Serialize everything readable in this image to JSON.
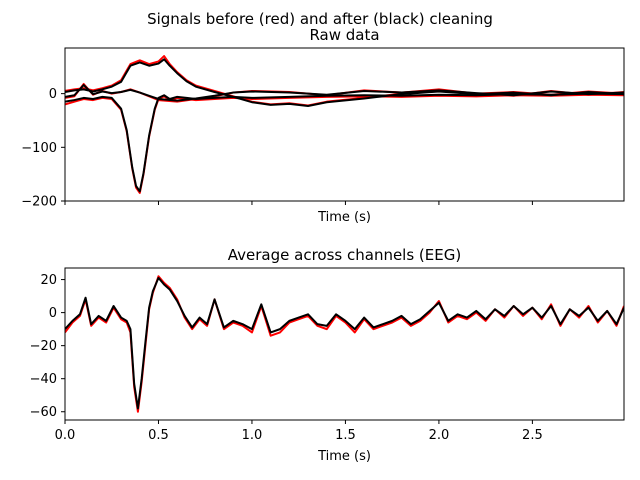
{
  "figure": {
    "suptitle": "Signals before (red) and after (black) cleaning",
    "colors": {
      "before": "#ff0000",
      "after": "#000000"
    }
  },
  "chart_data": [
    {
      "type": "line",
      "title": "Raw data",
      "xlabel": "Time (s)",
      "ylabel": "",
      "xlim": [
        0,
        2.99
      ],
      "ylim": [
        -200,
        85
      ],
      "xticks": [
        0.0,
        0.5,
        1.0,
        1.5,
        2.0,
        2.5
      ],
      "xtick_labels": [
        "",
        "",
        "",
        "",
        "",
        ""
      ],
      "yticks": [
        -200,
        -100,
        0
      ],
      "ytick_labels": [
        "−200",
        "−100",
        "0"
      ],
      "grid": false,
      "legend": "none",
      "series_groups": [
        {
          "channel": 1,
          "before": {
            "x": [
              0.0,
              0.05,
              0.1,
              0.15,
              0.2,
              0.25,
              0.3,
              0.33,
              0.36,
              0.38,
              0.4,
              0.42,
              0.45,
              0.48,
              0.5,
              0.53,
              0.56,
              0.6,
              0.65,
              0.7,
              0.8,
              0.9,
              1.0,
              1.2,
              1.4,
              1.6,
              1.8,
              2.0,
              2.2,
              2.4,
              2.6,
              2.8,
              2.99
            ],
            "y": [
              -20,
              -15,
              -10,
              -12,
              -8,
              -10,
              -30,
              -70,
              -140,
              -175,
              -185,
              -150,
              -80,
              -30,
              -10,
              -5,
              -12,
              -8,
              -10,
              -12,
              -10,
              -8,
              -10,
              -8,
              -6,
              -5,
              -6,
              -4,
              -5,
              -3,
              -4,
              -2,
              -3
            ]
          },
          "after": {
            "x": [
              0.0,
              0.05,
              0.1,
              0.15,
              0.2,
              0.25,
              0.3,
              0.33,
              0.36,
              0.38,
              0.4,
              0.42,
              0.45,
              0.48,
              0.5,
              0.53,
              0.56,
              0.6,
              0.65,
              0.7,
              0.8,
              0.9,
              1.0,
              1.2,
              1.4,
              1.6,
              1.8,
              2.0,
              2.2,
              2.4,
              2.6,
              2.8,
              2.99
            ],
            "y": [
              -15,
              -12,
              -8,
              -10,
              -6,
              -8,
              -28,
              -68,
              -138,
              -172,
              -182,
              -148,
              -78,
              -28,
              -8,
              -3,
              -10,
              -6,
              -8,
              -10,
              -8,
              -6,
              -8,
              -6,
              -4,
              -3,
              -4,
              -2,
              -3,
              -1,
              -2,
              0,
              -1
            ]
          }
        },
        {
          "channel": 2,
          "before": {
            "x": [
              0.0,
              0.05,
              0.1,
              0.15,
              0.2,
              0.25,
              0.3,
              0.35,
              0.4,
              0.45,
              0.5,
              0.53,
              0.56,
              0.6,
              0.65,
              0.7,
              0.8,
              0.9,
              1.0,
              1.1,
              1.2,
              1.3,
              1.4,
              1.6,
              1.8,
              2.0,
              2.2,
              2.4,
              2.6,
              2.8,
              2.99
            ],
            "y": [
              5,
              8,
              10,
              6,
              10,
              15,
              25,
              55,
              62,
              55,
              60,
              70,
              55,
              40,
              25,
              15,
              5,
              -5,
              -15,
              -20,
              -18,
              -22,
              -15,
              -8,
              0,
              5,
              0,
              3,
              -2,
              4,
              0
            ]
          },
          "after": {
            "x": [
              0.0,
              0.05,
              0.1,
              0.15,
              0.2,
              0.25,
              0.3,
              0.35,
              0.4,
              0.45,
              0.5,
              0.53,
              0.56,
              0.6,
              0.65,
              0.7,
              0.8,
              0.9,
              1.0,
              1.1,
              1.2,
              1.3,
              1.4,
              1.6,
              1.8,
              2.0,
              2.2,
              2.4,
              2.6,
              2.8,
              2.99
            ],
            "y": [
              3,
              6,
              8,
              4,
              8,
              13,
              22,
              52,
              58,
              52,
              56,
              64,
              52,
              38,
              23,
              13,
              3,
              -6,
              -16,
              -21,
              -19,
              -23,
              -16,
              -9,
              -1,
              4,
              -1,
              2,
              -3,
              3,
              -1
            ]
          }
        },
        {
          "channel": 3,
          "before": {
            "x": [
              0.0,
              0.05,
              0.1,
              0.15,
              0.2,
              0.25,
              0.3,
              0.35,
              0.4,
              0.45,
              0.5,
              0.6,
              0.7,
              0.8,
              0.9,
              1.0,
              1.2,
              1.4,
              1.6,
              1.8,
              2.0,
              2.2,
              2.4,
              2.6,
              2.8,
              2.99
            ],
            "y": [
              -8,
              -5,
              18,
              -2,
              5,
              0,
              3,
              8,
              2,
              -5,
              -12,
              -15,
              -10,
              -5,
              2,
              5,
              3,
              -3,
              6,
              2,
              8,
              0,
              -4,
              5,
              -2,
              3
            ]
          },
          "after": {
            "x": [
              0.0,
              0.05,
              0.1,
              0.15,
              0.2,
              0.25,
              0.3,
              0.35,
              0.4,
              0.45,
              0.5,
              0.6,
              0.7,
              0.8,
              0.9,
              1.0,
              1.2,
              1.4,
              1.6,
              1.8,
              2.0,
              2.2,
              2.4,
              2.6,
              2.8,
              2.99
            ],
            "y": [
              -6,
              -3,
              16,
              -1,
              4,
              1,
              3,
              7,
              2,
              -4,
              -10,
              -13,
              -9,
              -4,
              2,
              4,
              2,
              -2,
              5,
              2,
              6,
              1,
              -3,
              4,
              -1,
              2
            ]
          }
        }
      ]
    },
    {
      "type": "line",
      "title": "Average across channels (EEG)",
      "xlabel": "Time (s)",
      "ylabel": "",
      "xlim": [
        0,
        2.99
      ],
      "ylim": [
        -65,
        27
      ],
      "xticks": [
        0.0,
        0.5,
        1.0,
        1.5,
        2.0,
        2.5
      ],
      "xtick_labels": [
        "0.0",
        "0.5",
        "1.0",
        "1.5",
        "2.0",
        "2.5"
      ],
      "yticks": [
        -60,
        -40,
        -20,
        0,
        20
      ],
      "ytick_labels": [
        "−60",
        "−40",
        "−20",
        "0",
        "20"
      ],
      "grid": false,
      "legend": "none",
      "series": [
        {
          "role": "before",
          "x": [
            0.0,
            0.04,
            0.08,
            0.11,
            0.14,
            0.18,
            0.22,
            0.26,
            0.3,
            0.33,
            0.35,
            0.37,
            0.39,
            0.41,
            0.43,
            0.45,
            0.47,
            0.5,
            0.53,
            0.56,
            0.6,
            0.64,
            0.68,
            0.72,
            0.76,
            0.8,
            0.85,
            0.9,
            0.95,
            1.0,
            1.05,
            1.1,
            1.15,
            1.2,
            1.25,
            1.3,
            1.35,
            1.4,
            1.45,
            1.5,
            1.55,
            1.6,
            1.65,
            1.7,
            1.75,
            1.8,
            1.85,
            1.9,
            1.95,
            2.0,
            2.05,
            2.1,
            2.15,
            2.2,
            2.25,
            2.3,
            2.35,
            2.4,
            2.45,
            2.5,
            2.55,
            2.6,
            2.65,
            2.7,
            2.75,
            2.8,
            2.85,
            2.9,
            2.95,
            2.99
          ],
          "y": [
            -12,
            -6,
            -2,
            8,
            -8,
            -3,
            -6,
            3,
            -4,
            -6,
            -12,
            -45,
            -60,
            -42,
            -20,
            2,
            12,
            22,
            18,
            15,
            8,
            -3,
            -10,
            -4,
            -8,
            8,
            -10,
            -6,
            -8,
            -12,
            4,
            -14,
            -12,
            -6,
            -4,
            -2,
            -8,
            -10,
            -2,
            -6,
            -12,
            -4,
            -10,
            -8,
            -6,
            -3,
            -8,
            -5,
            0,
            7,
            -6,
            -2,
            -4,
            0,
            -5,
            2,
            -3,
            4,
            -2,
            3,
            -4,
            5,
            -8,
            2,
            -3,
            4,
            -6,
            1,
            -8,
            4
          ]
        },
        {
          "role": "after",
          "x": [
            0.0,
            0.04,
            0.08,
            0.11,
            0.14,
            0.18,
            0.22,
            0.26,
            0.3,
            0.33,
            0.35,
            0.37,
            0.39,
            0.41,
            0.43,
            0.45,
            0.47,
            0.5,
            0.53,
            0.56,
            0.6,
            0.64,
            0.68,
            0.72,
            0.76,
            0.8,
            0.85,
            0.9,
            0.95,
            1.0,
            1.05,
            1.1,
            1.15,
            1.2,
            1.25,
            1.3,
            1.35,
            1.4,
            1.45,
            1.5,
            1.55,
            1.6,
            1.65,
            1.7,
            1.75,
            1.8,
            1.85,
            1.9,
            1.95,
            2.0,
            2.05,
            2.1,
            2.15,
            2.2,
            2.25,
            2.3,
            2.35,
            2.4,
            2.45,
            2.5,
            2.55,
            2.6,
            2.65,
            2.7,
            2.75,
            2.8,
            2.85,
            2.9,
            2.95,
            2.99
          ],
          "y": [
            -10,
            -5,
            -1,
            9,
            -7,
            -2,
            -5,
            4,
            -3,
            -5,
            -10,
            -43,
            -58,
            -40,
            -18,
            3,
            13,
            21,
            17,
            14,
            7,
            -2,
            -9,
            -3,
            -7,
            8,
            -9,
            -5,
            -7,
            -10,
            5,
            -12,
            -10,
            -5,
            -3,
            -1,
            -7,
            -8,
            -1,
            -5,
            -10,
            -3,
            -9,
            -7,
            -5,
            -2,
            -7,
            -4,
            1,
            6,
            -5,
            -1,
            -3,
            1,
            -4,
            2,
            -2,
            4,
            -1,
            3,
            -3,
            4,
            -7,
            2,
            -2,
            3,
            -5,
            1,
            -7,
            3
          ]
        }
      ]
    }
  ]
}
